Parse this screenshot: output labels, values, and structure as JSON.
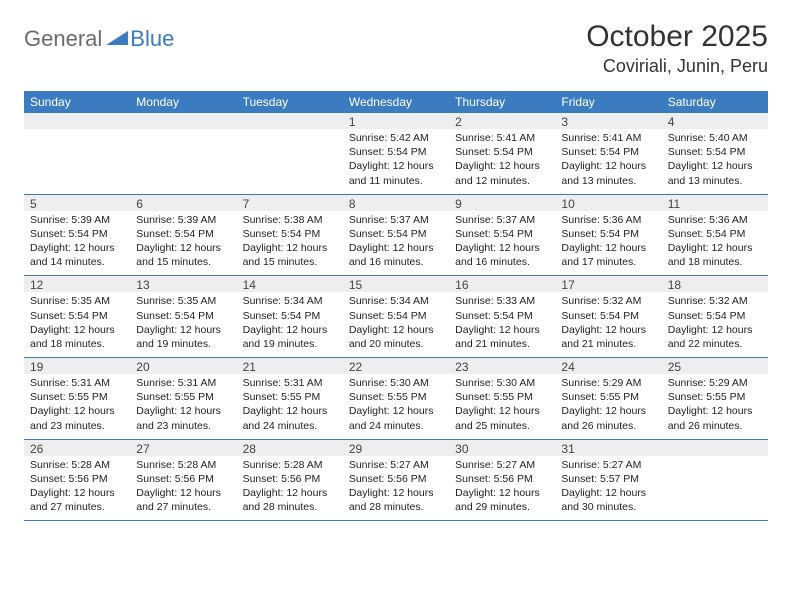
{
  "logo": {
    "general": "General",
    "blue": "Blue"
  },
  "title": "October 2025",
  "location": "Coviriali, Junin, Peru",
  "header_bg": "#3b7bbf",
  "dayNames": [
    "Sunday",
    "Monday",
    "Tuesday",
    "Wednesday",
    "Thursday",
    "Friday",
    "Saturday"
  ],
  "weeks": [
    [
      null,
      null,
      null,
      {
        "n": "1",
        "sunrise": "Sunrise: 5:42 AM",
        "sunset": "Sunset: 5:54 PM",
        "day1": "Daylight: 12 hours",
        "day2": "and 11 minutes."
      },
      {
        "n": "2",
        "sunrise": "Sunrise: 5:41 AM",
        "sunset": "Sunset: 5:54 PM",
        "day1": "Daylight: 12 hours",
        "day2": "and 12 minutes."
      },
      {
        "n": "3",
        "sunrise": "Sunrise: 5:41 AM",
        "sunset": "Sunset: 5:54 PM",
        "day1": "Daylight: 12 hours",
        "day2": "and 13 minutes."
      },
      {
        "n": "4",
        "sunrise": "Sunrise: 5:40 AM",
        "sunset": "Sunset: 5:54 PM",
        "day1": "Daylight: 12 hours",
        "day2": "and 13 minutes."
      }
    ],
    [
      {
        "n": "5",
        "sunrise": "Sunrise: 5:39 AM",
        "sunset": "Sunset: 5:54 PM",
        "day1": "Daylight: 12 hours",
        "day2": "and 14 minutes."
      },
      {
        "n": "6",
        "sunrise": "Sunrise: 5:39 AM",
        "sunset": "Sunset: 5:54 PM",
        "day1": "Daylight: 12 hours",
        "day2": "and 15 minutes."
      },
      {
        "n": "7",
        "sunrise": "Sunrise: 5:38 AM",
        "sunset": "Sunset: 5:54 PM",
        "day1": "Daylight: 12 hours",
        "day2": "and 15 minutes."
      },
      {
        "n": "8",
        "sunrise": "Sunrise: 5:37 AM",
        "sunset": "Sunset: 5:54 PM",
        "day1": "Daylight: 12 hours",
        "day2": "and 16 minutes."
      },
      {
        "n": "9",
        "sunrise": "Sunrise: 5:37 AM",
        "sunset": "Sunset: 5:54 PM",
        "day1": "Daylight: 12 hours",
        "day2": "and 16 minutes."
      },
      {
        "n": "10",
        "sunrise": "Sunrise: 5:36 AM",
        "sunset": "Sunset: 5:54 PM",
        "day1": "Daylight: 12 hours",
        "day2": "and 17 minutes."
      },
      {
        "n": "11",
        "sunrise": "Sunrise: 5:36 AM",
        "sunset": "Sunset: 5:54 PM",
        "day1": "Daylight: 12 hours",
        "day2": "and 18 minutes."
      }
    ],
    [
      {
        "n": "12",
        "sunrise": "Sunrise: 5:35 AM",
        "sunset": "Sunset: 5:54 PM",
        "day1": "Daylight: 12 hours",
        "day2": "and 18 minutes."
      },
      {
        "n": "13",
        "sunrise": "Sunrise: 5:35 AM",
        "sunset": "Sunset: 5:54 PM",
        "day1": "Daylight: 12 hours",
        "day2": "and 19 minutes."
      },
      {
        "n": "14",
        "sunrise": "Sunrise: 5:34 AM",
        "sunset": "Sunset: 5:54 PM",
        "day1": "Daylight: 12 hours",
        "day2": "and 19 minutes."
      },
      {
        "n": "15",
        "sunrise": "Sunrise: 5:34 AM",
        "sunset": "Sunset: 5:54 PM",
        "day1": "Daylight: 12 hours",
        "day2": "and 20 minutes."
      },
      {
        "n": "16",
        "sunrise": "Sunrise: 5:33 AM",
        "sunset": "Sunset: 5:54 PM",
        "day1": "Daylight: 12 hours",
        "day2": "and 21 minutes."
      },
      {
        "n": "17",
        "sunrise": "Sunrise: 5:32 AM",
        "sunset": "Sunset: 5:54 PM",
        "day1": "Daylight: 12 hours",
        "day2": "and 21 minutes."
      },
      {
        "n": "18",
        "sunrise": "Sunrise: 5:32 AM",
        "sunset": "Sunset: 5:54 PM",
        "day1": "Daylight: 12 hours",
        "day2": "and 22 minutes."
      }
    ],
    [
      {
        "n": "19",
        "sunrise": "Sunrise: 5:31 AM",
        "sunset": "Sunset: 5:55 PM",
        "day1": "Daylight: 12 hours",
        "day2": "and 23 minutes."
      },
      {
        "n": "20",
        "sunrise": "Sunrise: 5:31 AM",
        "sunset": "Sunset: 5:55 PM",
        "day1": "Daylight: 12 hours",
        "day2": "and 23 minutes."
      },
      {
        "n": "21",
        "sunrise": "Sunrise: 5:31 AM",
        "sunset": "Sunset: 5:55 PM",
        "day1": "Daylight: 12 hours",
        "day2": "and 24 minutes."
      },
      {
        "n": "22",
        "sunrise": "Sunrise: 5:30 AM",
        "sunset": "Sunset: 5:55 PM",
        "day1": "Daylight: 12 hours",
        "day2": "and 24 minutes."
      },
      {
        "n": "23",
        "sunrise": "Sunrise: 5:30 AM",
        "sunset": "Sunset: 5:55 PM",
        "day1": "Daylight: 12 hours",
        "day2": "and 25 minutes."
      },
      {
        "n": "24",
        "sunrise": "Sunrise: 5:29 AM",
        "sunset": "Sunset: 5:55 PM",
        "day1": "Daylight: 12 hours",
        "day2": "and 26 minutes."
      },
      {
        "n": "25",
        "sunrise": "Sunrise: 5:29 AM",
        "sunset": "Sunset: 5:55 PM",
        "day1": "Daylight: 12 hours",
        "day2": "and 26 minutes."
      }
    ],
    [
      {
        "n": "26",
        "sunrise": "Sunrise: 5:28 AM",
        "sunset": "Sunset: 5:56 PM",
        "day1": "Daylight: 12 hours",
        "day2": "and 27 minutes."
      },
      {
        "n": "27",
        "sunrise": "Sunrise: 5:28 AM",
        "sunset": "Sunset: 5:56 PM",
        "day1": "Daylight: 12 hours",
        "day2": "and 27 minutes."
      },
      {
        "n": "28",
        "sunrise": "Sunrise: 5:28 AM",
        "sunset": "Sunset: 5:56 PM",
        "day1": "Daylight: 12 hours",
        "day2": "and 28 minutes."
      },
      {
        "n": "29",
        "sunrise": "Sunrise: 5:27 AM",
        "sunset": "Sunset: 5:56 PM",
        "day1": "Daylight: 12 hours",
        "day2": "and 28 minutes."
      },
      {
        "n": "30",
        "sunrise": "Sunrise: 5:27 AM",
        "sunset": "Sunset: 5:56 PM",
        "day1": "Daylight: 12 hours",
        "day2": "and 29 minutes."
      },
      {
        "n": "31",
        "sunrise": "Sunrise: 5:27 AM",
        "sunset": "Sunset: 5:57 PM",
        "day1": "Daylight: 12 hours",
        "day2": "and 30 minutes."
      },
      null
    ]
  ]
}
